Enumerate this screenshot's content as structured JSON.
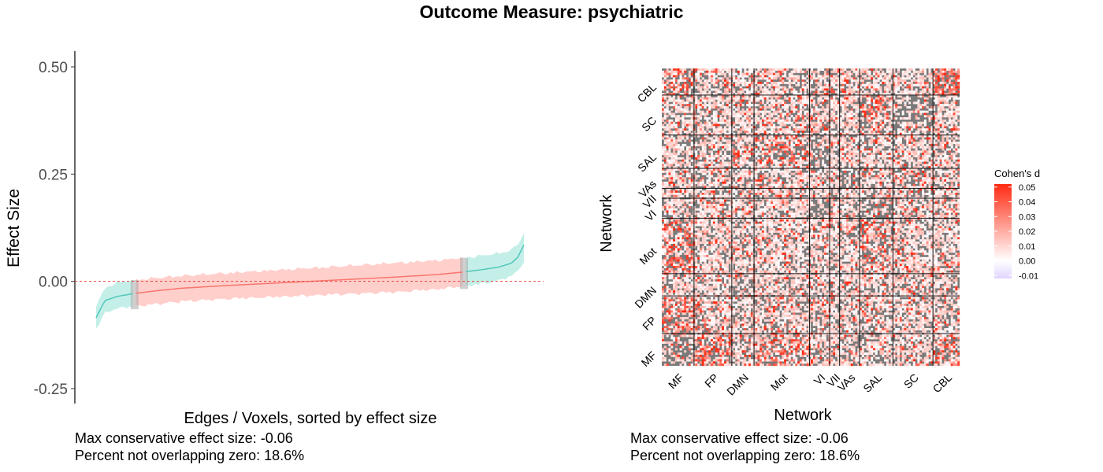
{
  "title": "Outcome Measure: psychiatric",
  "left_notes": [
    "Max conservative effect size: -0.06",
    "Percent not overlapping zero: 18.6%"
  ],
  "right_notes": [
    "Max conservative effect size: -0.06",
    "Percent not overlapping zero: 18.6%"
  ],
  "colors": {
    "overlap_band": "#ffcfcc",
    "overlap_line": "#f8766d",
    "nonoverlap_band": "#c4efe9",
    "nonoverlap_line": "#52c7b8",
    "ref_line": "#e8443a",
    "heat_high": "#ff2a12",
    "heat_mid": "#ffffff",
    "heat_low": "#e0d4ff",
    "heat_na": "#7a7a7a"
  },
  "chart_data": [
    {
      "type": "line",
      "title": "",
      "xlabel": "Edges / Voxels, sorted by effect size",
      "ylabel": "Effect Size",
      "ylim": [
        -0.28,
        0.54
      ],
      "yticks": [
        -0.25,
        0.0,
        0.25,
        0.5
      ],
      "ytick_labels": [
        "-0.25",
        "0.00",
        "0.25",
        "0.50"
      ],
      "grid": false,
      "reference_line_y": 0,
      "x": [
        0,
        0.02,
        0.05,
        0.09,
        0.14,
        0.2,
        0.3,
        0.4,
        0.5,
        0.6,
        0.7,
        0.8,
        0.86,
        0.9,
        0.94,
        0.97,
        0.985,
        1.0
      ],
      "y": [
        -0.085,
        -0.045,
        -0.035,
        -0.028,
        -0.022,
        -0.016,
        -0.01,
        -0.005,
        0.0,
        0.005,
        0.01,
        0.016,
        0.022,
        0.027,
        0.033,
        0.042,
        0.055,
        0.085
      ],
      "lower": [
        -0.11,
        -0.07,
        -0.06,
        -0.055,
        -0.05,
        -0.044,
        -0.038,
        -0.034,
        -0.03,
        -0.026,
        -0.022,
        -0.015,
        -0.008,
        -0.003,
        0.005,
        0.015,
        0.025,
        0.05
      ],
      "upper": [
        -0.06,
        -0.02,
        -0.005,
        0.0,
        0.005,
        0.01,
        0.016,
        0.022,
        0.028,
        0.034,
        0.04,
        0.046,
        0.052,
        0.057,
        0.062,
        0.07,
        0.082,
        0.11
      ],
      "overlap_zero_range": [
        0.09,
        0.86
      ],
      "legend": null
    },
    {
      "type": "heatmap",
      "title": "",
      "xlabel": "Network",
      "ylabel": "Network",
      "x_categories": [
        "MF",
        "FP",
        "DMN",
        "Mot",
        "VI",
        "VII",
        "VAs",
        "SAL",
        "SC",
        "CBL"
      ],
      "y_categories": [
        "MF",
        "FP",
        "DMN",
        "Mot",
        "VI",
        "VII",
        "VAs",
        "SAL",
        "SC",
        "CBL"
      ],
      "network_node_counts": [
        29,
        34,
        20,
        50,
        18,
        9,
        18,
        30,
        36,
        24
      ],
      "legend": {
        "title": "Cohen's d",
        "ticks": [
          0.05,
          0.04,
          0.03,
          0.02,
          0.01,
          0.0,
          -0.01
        ],
        "tick_labels": [
          "0.05",
          "0.04",
          "0.03",
          "0.02",
          "0.01",
          "0.00",
          "-0.01"
        ],
        "range": [
          -0.012,
          0.052
        ],
        "placement": "right"
      },
      "values_note": "dense edge-level matrix; grey = NA, white-to-red scale"
    }
  ]
}
